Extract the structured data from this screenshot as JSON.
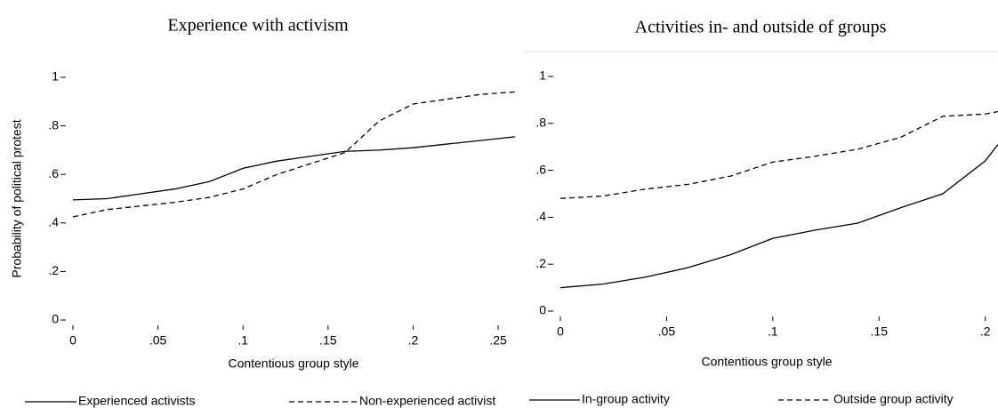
{
  "chart_data": [
    {
      "type": "line",
      "title": "Experience with activism",
      "x_label": "Contentious group style",
      "y_label": "Probability of political protest",
      "x": [
        0,
        0.02,
        0.04,
        0.06,
        0.08,
        0.1,
        0.12,
        0.14,
        0.16,
        0.18,
        0.2,
        0.22,
        0.24,
        0.26
      ],
      "series": [
        {
          "name": "Experienced activists",
          "color": "#000000",
          "line_style": "solid",
          "values": [
            0.495,
            0.5,
            0.52,
            0.54,
            0.57,
            0.625,
            0.655,
            0.675,
            0.695,
            0.7,
            0.71,
            0.725,
            0.74,
            0.755
          ]
        },
        {
          "name": "Non-experienced activist",
          "color": "#000000",
          "line_style": "dashed",
          "values": [
            0.425,
            0.455,
            0.47,
            0.485,
            0.505,
            0.54,
            0.6,
            0.645,
            0.69,
            0.82,
            0.89,
            0.91,
            0.93,
            0.94
          ]
        }
      ],
      "xlim": [
        0,
        0.262
      ],
      "ylim": [
        0,
        1
      ],
      "xticks": [
        0,
        {
          "value": 0.05,
          "label": ".05"
        },
        {
          "value": 0.1,
          "label": ".1"
        },
        {
          "value": 0.15,
          "label": ".15"
        },
        {
          "value": 0.2,
          "label": ".2"
        },
        {
          "value": 0.25,
          "label": ".25"
        }
      ],
      "yticks": [
        0,
        {
          "value": 0.2,
          "label": ".2"
        },
        {
          "value": 0.4,
          "label": ".4"
        },
        {
          "value": 0.6,
          "label": ".6"
        },
        {
          "value": 0.8,
          "label": ".8"
        },
        1
      ]
    },
    {
      "type": "line",
      "title": "Activities in- and outside of groups",
      "x_label": "Contentious group style",
      "x": [
        0,
        0.02,
        0.04,
        0.06,
        0.08,
        0.1,
        0.12,
        0.14,
        0.16,
        0.18,
        0.2,
        0.206
      ],
      "series": [
        {
          "name": "In-group activity",
          "color": "#000000",
          "line_style": "solid",
          "values": [
            0.1,
            0.115,
            0.145,
            0.185,
            0.24,
            0.31,
            0.345,
            0.375,
            0.44,
            0.5,
            0.64,
            0.71
          ]
        },
        {
          "name": "Outside group activity",
          "color": "#000000",
          "line_style": "dashed",
          "values": [
            0.48,
            0.49,
            0.52,
            0.54,
            0.575,
            0.635,
            0.66,
            0.69,
            0.74,
            0.83,
            0.84,
            0.85
          ]
        }
      ],
      "xlim": [
        0,
        0.206
      ],
      "ylim": [
        0,
        1
      ],
      "xticks": [
        0,
        {
          "value": 0.05,
          "label": ".05"
        },
        {
          "value": 0.1,
          "label": ".1"
        },
        {
          "value": 0.15,
          "label": ".15"
        },
        {
          "value": 0.2,
          "label": ".2"
        }
      ],
      "yticks": [
        0,
        {
          "value": 0.2,
          "label": ".2"
        },
        {
          "value": 0.4,
          "label": ".4"
        },
        {
          "value": 0.6,
          "label": ".6"
        },
        {
          "value": 0.8,
          "label": ".8"
        },
        1
      ]
    }
  ]
}
